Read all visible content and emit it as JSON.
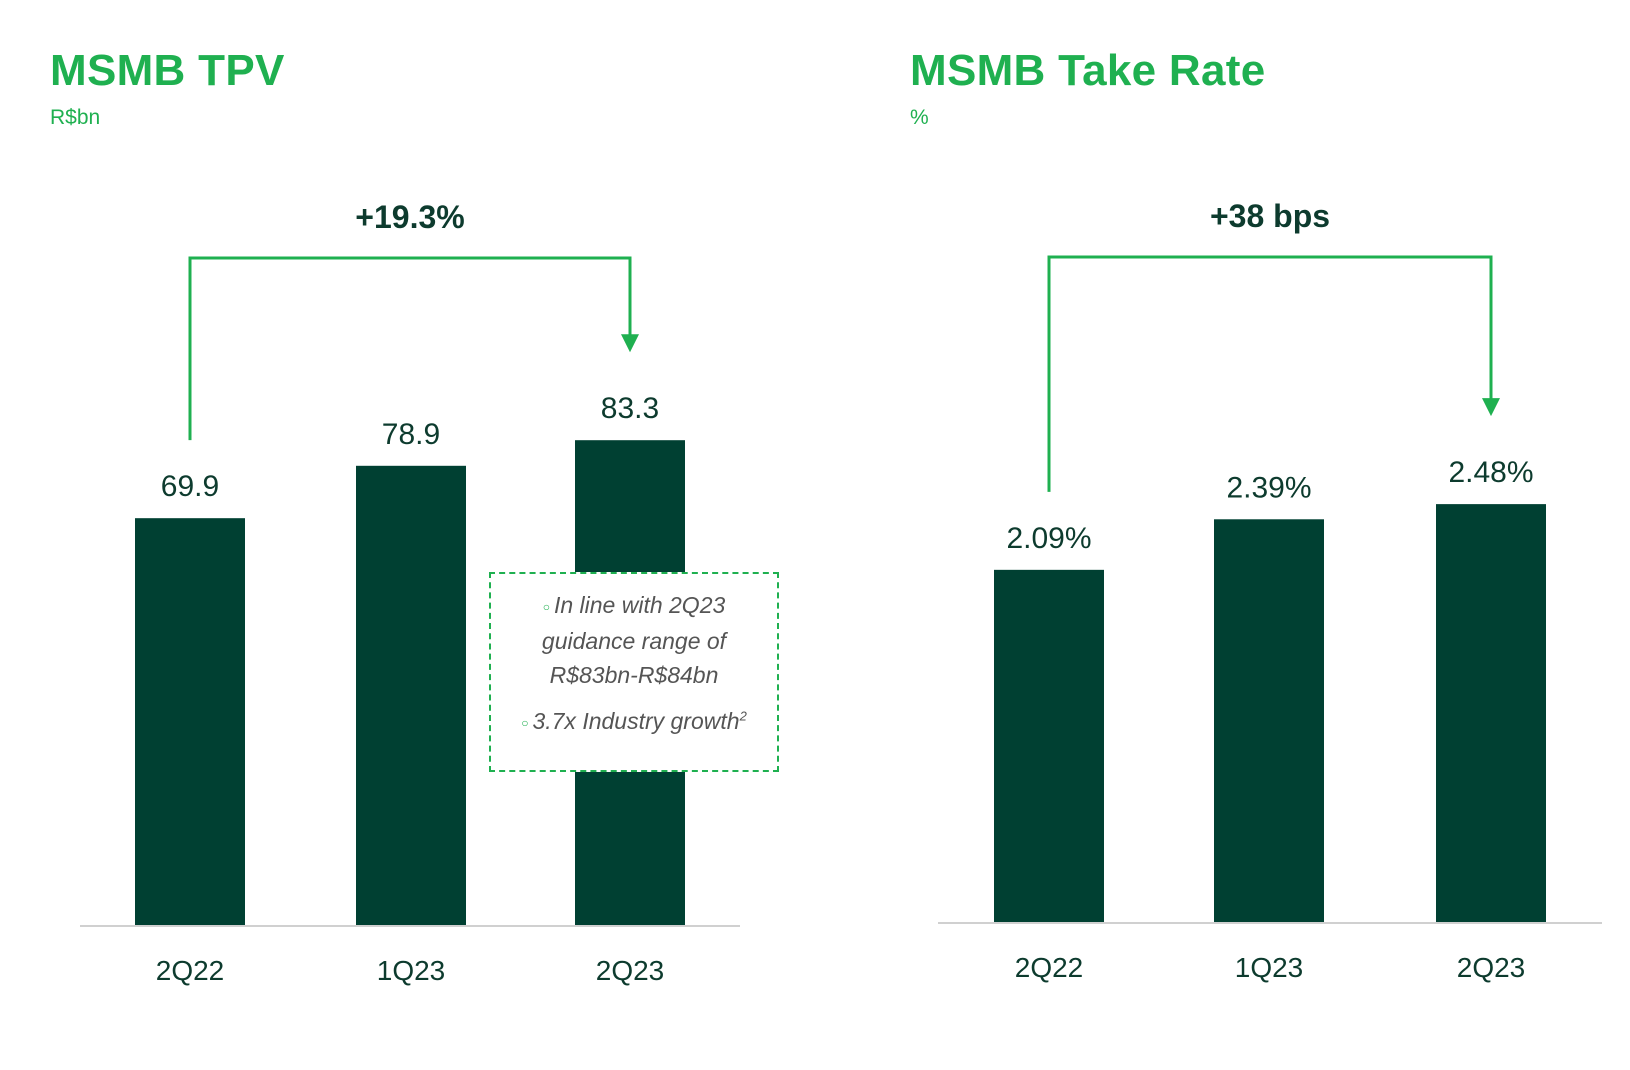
{
  "colors": {
    "bar": "#004032",
    "accent": "#1fb050",
    "text": "#0d3b2e",
    "axis": "#d0d0d0"
  },
  "chart_data": [
    {
      "type": "bar",
      "title": "MSMB TPV",
      "subtitle": "R$bn",
      "categories": [
        "2Q22",
        "1Q23",
        "2Q23"
      ],
      "values": [
        69.9,
        78.9,
        83.3
      ],
      "value_labels": [
        "69.9",
        "78.9",
        "83.3"
      ],
      "change_label": "+19.3%",
      "annotation": {
        "items": [
          {
            "text": "In line with 2Q23 guidance range of R$83bn-R$84bn",
            "sup": ""
          },
          {
            "text": "3.7x Industry growth",
            "sup": "2"
          }
        ]
      },
      "grid": false,
      "legend": "none"
    },
    {
      "type": "bar",
      "title": "MSMB Take Rate",
      "subtitle": "%",
      "categories": [
        "2Q22",
        "1Q23",
        "2Q23"
      ],
      "values": [
        2.09,
        2.39,
        2.48
      ],
      "value_labels": [
        "2.09%",
        "2.39%",
        "2.48%"
      ],
      "change_label": "+38 bps",
      "grid": false,
      "legend": "none"
    }
  ]
}
